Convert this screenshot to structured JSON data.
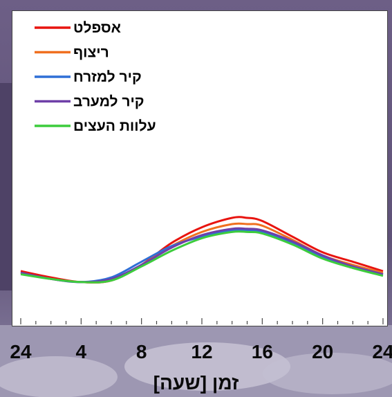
{
  "chart_data": {
    "type": "line",
    "xlabel": "זמן [שעה]",
    "ylabel": "",
    "title": "",
    "x_ticks": [
      "24",
      "4",
      "8",
      "12",
      "16",
      "20",
      "24"
    ],
    "x": [
      0,
      2,
      4,
      6,
      8,
      10,
      12,
      14,
      15,
      16,
      18,
      20,
      22,
      24
    ],
    "ylim": [
      0,
      100
    ],
    "legend_position": "top-left",
    "series": [
      {
        "name": "אספלט",
        "color": "#e8140f",
        "values": [
          17,
          15,
          13.5,
          14,
          19,
          26,
          31,
          34,
          34,
          33,
          28,
          23,
          20,
          17
        ]
      },
      {
        "name": "ריצוף",
        "color": "#f07020",
        "values": [
          16.5,
          14.5,
          13.5,
          14,
          19,
          25,
          29.5,
          32,
          32,
          31.5,
          27,
          22,
          19,
          16.5
        ]
      },
      {
        "name": "קיר למזרח",
        "color": "#2f6fd6",
        "values": [
          16.5,
          14.5,
          13.5,
          15,
          20,
          25,
          28,
          30,
          30,
          29.5,
          26,
          21.5,
          18.5,
          16
        ]
      },
      {
        "name": "קיר למערב",
        "color": "#6e3fa8",
        "values": [
          16.5,
          14.5,
          13.5,
          14.5,
          19,
          24.5,
          28.5,
          30.5,
          30.5,
          30,
          26.5,
          22,
          18.5,
          16
        ]
      },
      {
        "name": "עלוות העצים",
        "color": "#3dcc3d",
        "values": [
          16,
          14.5,
          13.5,
          14,
          18.5,
          23.5,
          27.5,
          29.5,
          29.5,
          29,
          25.5,
          21,
          18,
          15.5
        ]
      }
    ]
  }
}
